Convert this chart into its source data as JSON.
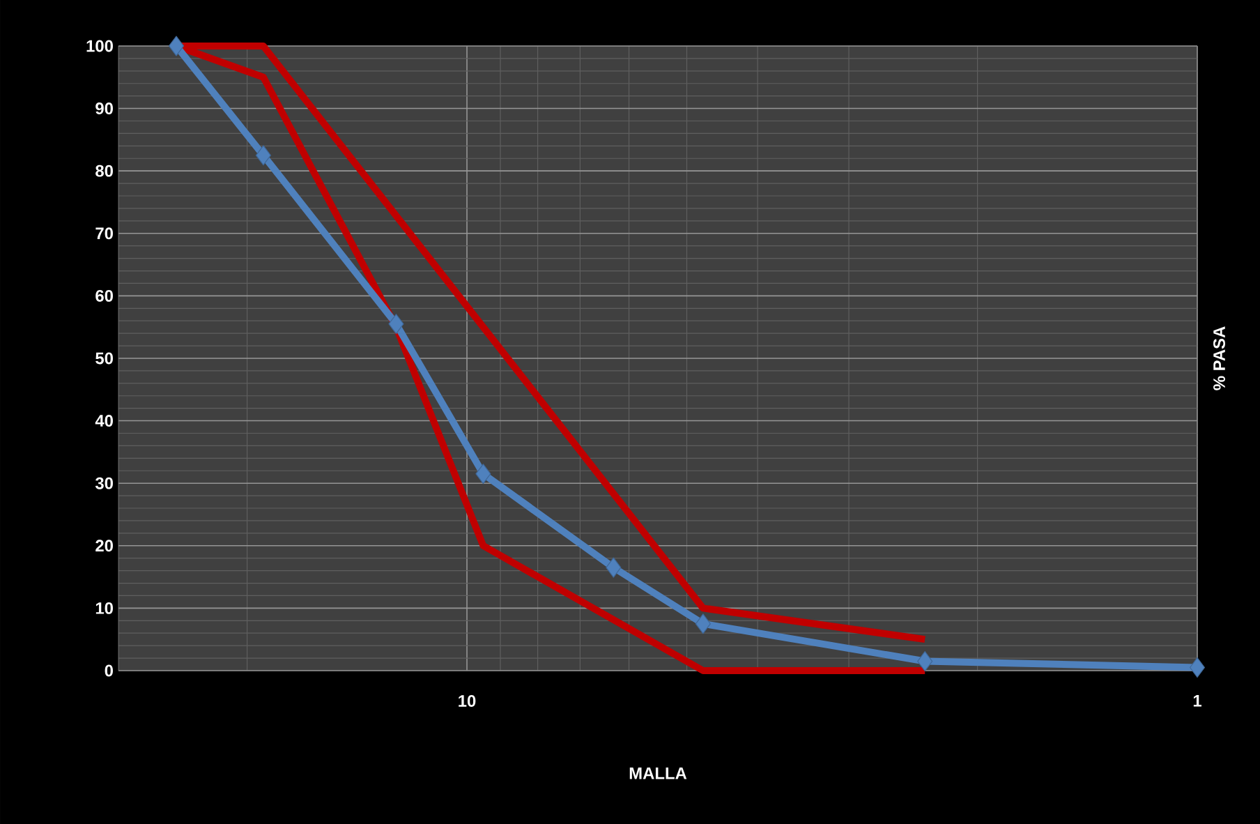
{
  "chart_data": {
    "type": "line",
    "xlabel": "MALLA",
    "ylabel": "% PASA",
    "log": "x",
    "xlim": [
      30,
      1
    ],
    "xticks": [
      10,
      1
    ],
    "ylim": [
      0,
      100
    ],
    "yticks": [
      0,
      10,
      20,
      30,
      40,
      50,
      60,
      70,
      80,
      90,
      100
    ],
    "grid": true,
    "line_style": "solid",
    "series": [
      {
        "color": "#c00000",
        "marker": "none",
        "x": [
          25,
          19,
          4.75,
          2.36
        ],
        "values": [
          100,
          100,
          10,
          5
        ]
      },
      {
        "color": "#c00000",
        "marker": "none",
        "x": [
          25,
          19,
          12.5,
          9.5,
          4.75,
          2.36
        ],
        "values": [
          100,
          95,
          55,
          20,
          0,
          0
        ]
      },
      {
        "color": "#4f81bd",
        "marker": "diamond",
        "x": [
          25,
          19,
          12.5,
          9.5,
          6.3,
          4.75,
          2.36,
          1
        ],
        "values": [
          100,
          82.5,
          55.5,
          31.5,
          16.5,
          7.5,
          1.5,
          0.5
        ]
      }
    ]
  }
}
